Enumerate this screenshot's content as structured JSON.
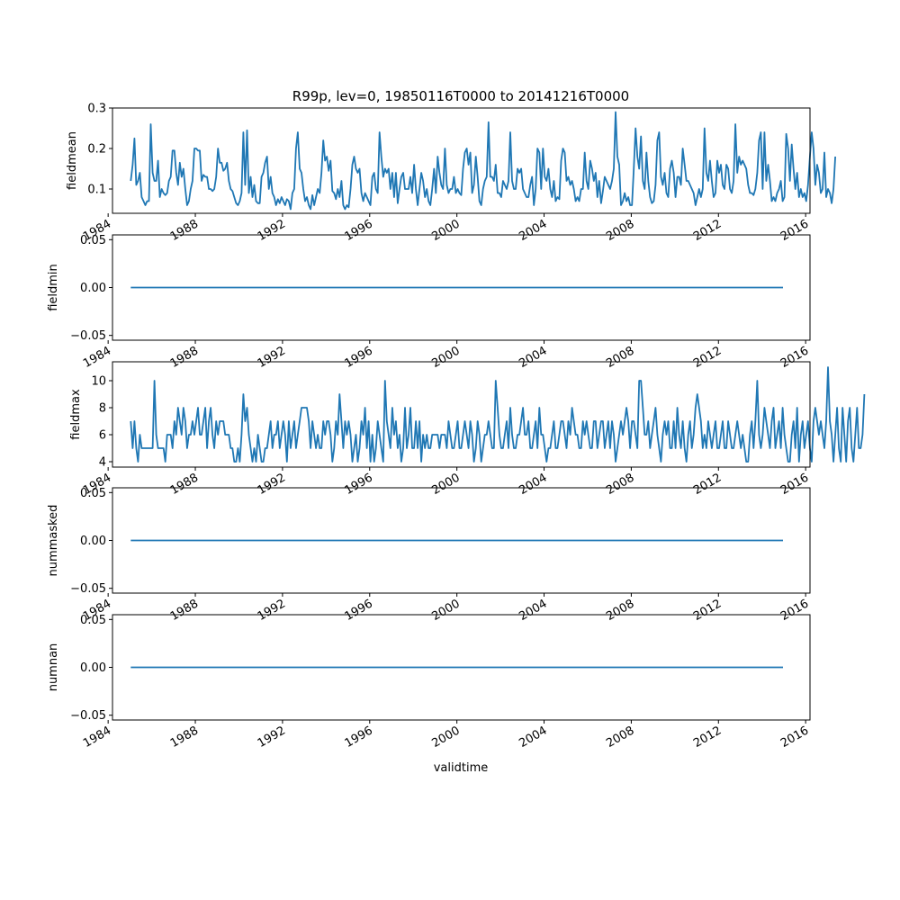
{
  "figure": {
    "title": "R99p, lev=0, 19850116T0000 to 20141216T0000",
    "xlabel": "validtime"
  },
  "chart_data": [
    {
      "type": "line",
      "ylabel": "fieldmean",
      "xlim": [
        1984.2,
        2016.2
      ],
      "ylim": [
        0.04,
        0.3
      ],
      "yticks": [
        0.1,
        0.2,
        0.3
      ],
      "ytick_labels": [
        "0.1",
        "0.2",
        "0.3"
      ],
      "xticks": [
        1984,
        1988,
        1992,
        1996,
        2000,
        2004,
        2008,
        2012,
        2016
      ],
      "xtick_labels": [
        "1984",
        "1988",
        "1992",
        "1996",
        "2000",
        "2004",
        "2008",
        "2012",
        "2016"
      ],
      "series": [
        {
          "color": "#1f77b4",
          "x_start": 1985.04,
          "step": 0.0833,
          "values": [
            0.12,
            0.16,
            0.225,
            0.11,
            0.12,
            0.14,
            0.08,
            0.07,
            0.06,
            0.07,
            0.07,
            0.26,
            0.14,
            0.12,
            0.12,
            0.17,
            0.08,
            0.1,
            0.09,
            0.085,
            0.09,
            0.12,
            0.13,
            0.195,
            0.195,
            0.14,
            0.11,
            0.165,
            0.13,
            0.15,
            0.1,
            0.06,
            0.07,
            0.1,
            0.12,
            0.2,
            0.2,
            0.195,
            0.195,
            0.12,
            0.135,
            0.13,
            0.13,
            0.1,
            0.1,
            0.095,
            0.1,
            0.13,
            0.2,
            0.165,
            0.165,
            0.145,
            0.15,
            0.165,
            0.12,
            0.1,
            0.095,
            0.08,
            0.065,
            0.06,
            0.07,
            0.09,
            0.24,
            0.11,
            0.245,
            0.09,
            0.13,
            0.08,
            0.11,
            0.07,
            0.065,
            0.065,
            0.13,
            0.14,
            0.165,
            0.18,
            0.1,
            0.13,
            0.09,
            0.08,
            0.06,
            0.075,
            0.065,
            0.08,
            0.07,
            0.06,
            0.075,
            0.07,
            0.05,
            0.09,
            0.1,
            0.2,
            0.24,
            0.15,
            0.14,
            0.1,
            0.07,
            0.08,
            0.06,
            0.05,
            0.085,
            0.06,
            0.08,
            0.1,
            0.09,
            0.14,
            0.22,
            0.17,
            0.18,
            0.145,
            0.17,
            0.095,
            0.09,
            0.075,
            0.1,
            0.08,
            0.12,
            0.06,
            0.05,
            0.06,
            0.055,
            0.1,
            0.16,
            0.18,
            0.15,
            0.14,
            0.15,
            0.09,
            0.07,
            0.09,
            0.08,
            0.07,
            0.06,
            0.13,
            0.14,
            0.1,
            0.09,
            0.24,
            0.18,
            0.13,
            0.15,
            0.14,
            0.15,
            0.1,
            0.14,
            0.08,
            0.14,
            0.065,
            0.1,
            0.13,
            0.14,
            0.1,
            0.1,
            0.1,
            0.13,
            0.09,
            0.16,
            0.1,
            0.06,
            0.1,
            0.14,
            0.12,
            0.08,
            0.1,
            0.07,
            0.06,
            0.1,
            0.15,
            0.09,
            0.18,
            0.14,
            0.11,
            0.1,
            0.2,
            0.11,
            0.09,
            0.1,
            0.1,
            0.13,
            0.09,
            0.1,
            0.09,
            0.085,
            0.15,
            0.19,
            0.2,
            0.16,
            0.19,
            0.09,
            0.11,
            0.18,
            0.13,
            0.07,
            0.06,
            0.1,
            0.12,
            0.13,
            0.265,
            0.13,
            0.13,
            0.12,
            0.16,
            0.09,
            0.09,
            0.08,
            0.12,
            0.11,
            0.1,
            0.12,
            0.24,
            0.12,
            0.1,
            0.1,
            0.15,
            0.14,
            0.15,
            0.1,
            0.09,
            0.08,
            0.08,
            0.11,
            0.13,
            0.06,
            0.1,
            0.2,
            0.19,
            0.1,
            0.2,
            0.13,
            0.12,
            0.15,
            0.1,
            0.08,
            0.12,
            0.07,
            0.08,
            0.075,
            0.17,
            0.2,
            0.19,
            0.12,
            0.13,
            0.11,
            0.12,
            0.1,
            0.07,
            0.08,
            0.07,
            0.1,
            0.1,
            0.19,
            0.12,
            0.1,
            0.17,
            0.15,
            0.12,
            0.14,
            0.08,
            0.12,
            0.065,
            0.095,
            0.13,
            0.12,
            0.11,
            0.1,
            0.12,
            0.15,
            0.29,
            0.18,
            0.16,
            0.06,
            0.07,
            0.09,
            0.07,
            0.08,
            0.06,
            0.06,
            0.15,
            0.25,
            0.18,
            0.15,
            0.23,
            0.12,
            0.1,
            0.19,
            0.12,
            0.08,
            0.065,
            0.07,
            0.11,
            0.22,
            0.24,
            0.13,
            0.11,
            0.14,
            0.09,
            0.08,
            0.15,
            0.17,
            0.14,
            0.08,
            0.13,
            0.13,
            0.11,
            0.2,
            0.16,
            0.12,
            0.12,
            0.11,
            0.1,
            0.09,
            0.06,
            0.08,
            0.1,
            0.08,
            0.1,
            0.25,
            0.14,
            0.12,
            0.17,
            0.12,
            0.08,
            0.09,
            0.17,
            0.14,
            0.16,
            0.11,
            0.1,
            0.16,
            0.15,
            0.1,
            0.09,
            0.12,
            0.26,
            0.14,
            0.18,
            0.16,
            0.17,
            0.16,
            0.15,
            0.11,
            0.09,
            0.09,
            0.085,
            0.1,
            0.14,
            0.22,
            0.24,
            0.1,
            0.24,
            0.12,
            0.16,
            0.12,
            0.07,
            0.08,
            0.07,
            0.09,
            0.1,
            0.12,
            0.07,
            0.08,
            0.236,
            0.2,
            0.12,
            0.21,
            0.15,
            0.1,
            0.14,
            0.08,
            0.1,
            0.08,
            0.09,
            0.07,
            0.11,
            0.18,
            0.24,
            0.2,
            0.11,
            0.16,
            0.14,
            0.09,
            0.1,
            0.19,
            0.08,
            0.1,
            0.09,
            0.065,
            0.1,
            0.18
          ]
        }
      ]
    },
    {
      "type": "line",
      "ylabel": "fieldmin",
      "xlim": [
        1984.2,
        2016.2
      ],
      "ylim": [
        -0.055,
        0.055
      ],
      "yticks": [
        -0.05,
        0.0,
        0.05
      ],
      "ytick_labels": [
        "−0.05",
        "0.00",
        "0.05"
      ],
      "xticks": [
        1984,
        1988,
        1992,
        1996,
        2000,
        2004,
        2008,
        2012,
        2016
      ],
      "xtick_labels": [
        "1984",
        "1988",
        "1992",
        "1996",
        "2000",
        "2004",
        "2008",
        "2012",
        "2016"
      ],
      "series": [
        {
          "color": "#1f77b4",
          "x": [
            1985.04,
            2014.96
          ],
          "y": [
            0,
            0
          ]
        }
      ]
    },
    {
      "type": "line",
      "ylabel": "fieldmax",
      "xlim": [
        1984.2,
        2016.2
      ],
      "ylim": [
        3.6,
        11.4
      ],
      "yticks": [
        4,
        6,
        8,
        10
      ],
      "ytick_labels": [
        "4",
        "6",
        "8",
        "10"
      ],
      "xticks": [
        1984,
        1988,
        1992,
        1996,
        2000,
        2004,
        2008,
        2012,
        2016
      ],
      "xtick_labels": [
        "1984",
        "1988",
        "1992",
        "1996",
        "2000",
        "2004",
        "2008",
        "2012",
        "2016"
      ],
      "series": [
        {
          "color": "#1f77b4",
          "x_start": 1985.04,
          "step": 0.0833,
          "values": [
            7,
            5,
            7,
            5,
            4,
            6,
            5,
            5,
            5,
            5,
            5,
            5,
            5,
            10,
            6,
            5,
            5,
            5,
            5,
            4,
            6,
            6,
            6,
            5,
            7,
            6,
            8,
            7,
            6,
            8,
            7,
            5,
            6,
            6,
            7,
            6,
            7,
            8,
            6,
            6,
            7,
            8,
            5,
            7,
            8,
            6,
            5,
            7,
            6,
            7,
            7,
            7,
            6,
            6,
            6,
            5,
            5,
            4,
            4,
            5,
            4,
            6,
            9,
            7,
            8,
            6,
            5,
            4,
            5,
            4,
            6,
            5,
            4,
            4,
            5,
            5,
            6,
            7,
            5,
            6,
            6,
            7,
            5,
            6,
            7,
            6,
            4,
            7,
            5,
            6,
            7,
            5,
            6,
            7,
            8,
            8,
            8,
            8,
            7,
            5,
            7,
            6,
            5,
            6,
            5,
            5,
            7,
            6,
            7,
            7,
            6,
            4,
            5,
            7,
            6,
            9,
            7,
            5,
            7,
            6,
            7,
            6,
            4,
            5,
            6,
            4,
            5,
            7,
            6,
            8,
            5,
            7,
            4,
            6,
            4,
            5,
            7,
            6,
            5,
            4,
            10,
            7,
            6,
            5,
            8,
            6,
            7,
            5,
            6,
            4,
            5,
            8,
            5,
            6,
            8,
            5,
            5,
            7,
            5,
            7,
            4,
            6,
            5,
            6,
            5,
            5,
            6,
            6,
            6,
            6,
            5,
            6,
            6,
            6,
            5,
            7,
            6,
            5,
            5,
            6,
            7,
            5,
            5,
            6,
            7,
            6,
            5,
            7,
            6,
            4,
            5,
            7,
            6,
            4,
            5,
            6,
            6,
            7,
            6,
            5,
            5,
            10,
            8,
            6,
            5,
            5,
            6,
            7,
            5,
            8,
            6,
            5,
            5,
            6,
            6,
            7,
            8,
            6,
            6,
            7,
            5,
            5,
            6,
            7,
            5,
            8,
            6,
            6,
            5,
            4,
            5,
            5,
            6,
            7,
            5,
            5,
            6,
            7,
            7,
            6,
            5,
            7,
            6,
            8,
            7,
            6,
            6,
            5,
            5,
            7,
            6,
            7,
            6,
            5,
            5,
            7,
            7,
            5,
            6,
            7,
            7,
            5,
            6,
            7,
            5,
            7,
            6,
            4,
            5,
            6,
            7,
            6,
            7,
            8,
            7,
            5,
            7,
            7,
            6,
            5,
            10,
            10,
            8,
            6,
            6,
            7,
            5,
            6,
            7,
            8,
            6,
            5,
            4,
            6,
            7,
            6,
            7,
            5,
            5,
            7,
            5,
            8,
            6,
            5,
            7,
            5,
            4,
            6,
            7,
            5,
            6,
            8,
            9,
            8,
            7,
            5,
            6,
            5,
            7,
            6,
            5,
            6,
            7,
            5,
            5,
            6,
            7,
            5,
            5,
            7,
            6,
            5,
            5,
            6,
            7,
            6,
            5,
            6,
            5,
            4,
            4,
            6,
            7,
            5,
            7,
            10,
            6,
            5,
            6,
            8,
            7,
            6,
            5,
            7,
            8,
            5,
            6,
            7,
            5,
            8,
            6,
            5,
            4,
            4,
            6,
            7,
            5,
            8,
            4,
            6,
            7,
            5,
            6,
            7,
            5,
            4,
            7,
            8,
            7,
            6,
            7,
            6,
            5,
            7,
            11,
            7,
            6,
            4,
            6,
            8,
            5,
            4,
            8,
            6,
            4,
            7,
            8,
            5,
            4,
            6,
            8,
            5,
            5,
            6,
            9
          ]
        }
      ]
    },
    {
      "type": "line",
      "ylabel": "nummasked",
      "xlim": [
        1984.2,
        2016.2
      ],
      "ylim": [
        -0.055,
        0.055
      ],
      "yticks": [
        -0.05,
        0.0,
        0.05
      ],
      "ytick_labels": [
        "−0.05",
        "0.00",
        "0.05"
      ],
      "xticks": [
        1984,
        1988,
        1992,
        1996,
        2000,
        2004,
        2008,
        2012,
        2016
      ],
      "xtick_labels": [
        "1984",
        "1988",
        "1992",
        "1996",
        "2000",
        "2004",
        "2008",
        "2012",
        "2016"
      ],
      "series": [
        {
          "color": "#1f77b4",
          "x": [
            1985.04,
            2014.96
          ],
          "y": [
            0,
            0
          ]
        }
      ]
    },
    {
      "type": "line",
      "ylabel": "numnan",
      "xlim": [
        1984.2,
        2016.2
      ],
      "ylim": [
        -0.055,
        0.055
      ],
      "yticks": [
        -0.05,
        0.0,
        0.05
      ],
      "ytick_labels": [
        "−0.05",
        "0.00",
        "0.05"
      ],
      "xticks": [
        1984,
        1988,
        1992,
        1996,
        2000,
        2004,
        2008,
        2012,
        2016
      ],
      "xtick_labels": [
        "1984",
        "1988",
        "1992",
        "1996",
        "2000",
        "2004",
        "2008",
        "2012",
        "2016"
      ],
      "series": [
        {
          "color": "#1f77b4",
          "x": [
            1985.04,
            2014.96
          ],
          "y": [
            0,
            0
          ]
        }
      ]
    }
  ]
}
